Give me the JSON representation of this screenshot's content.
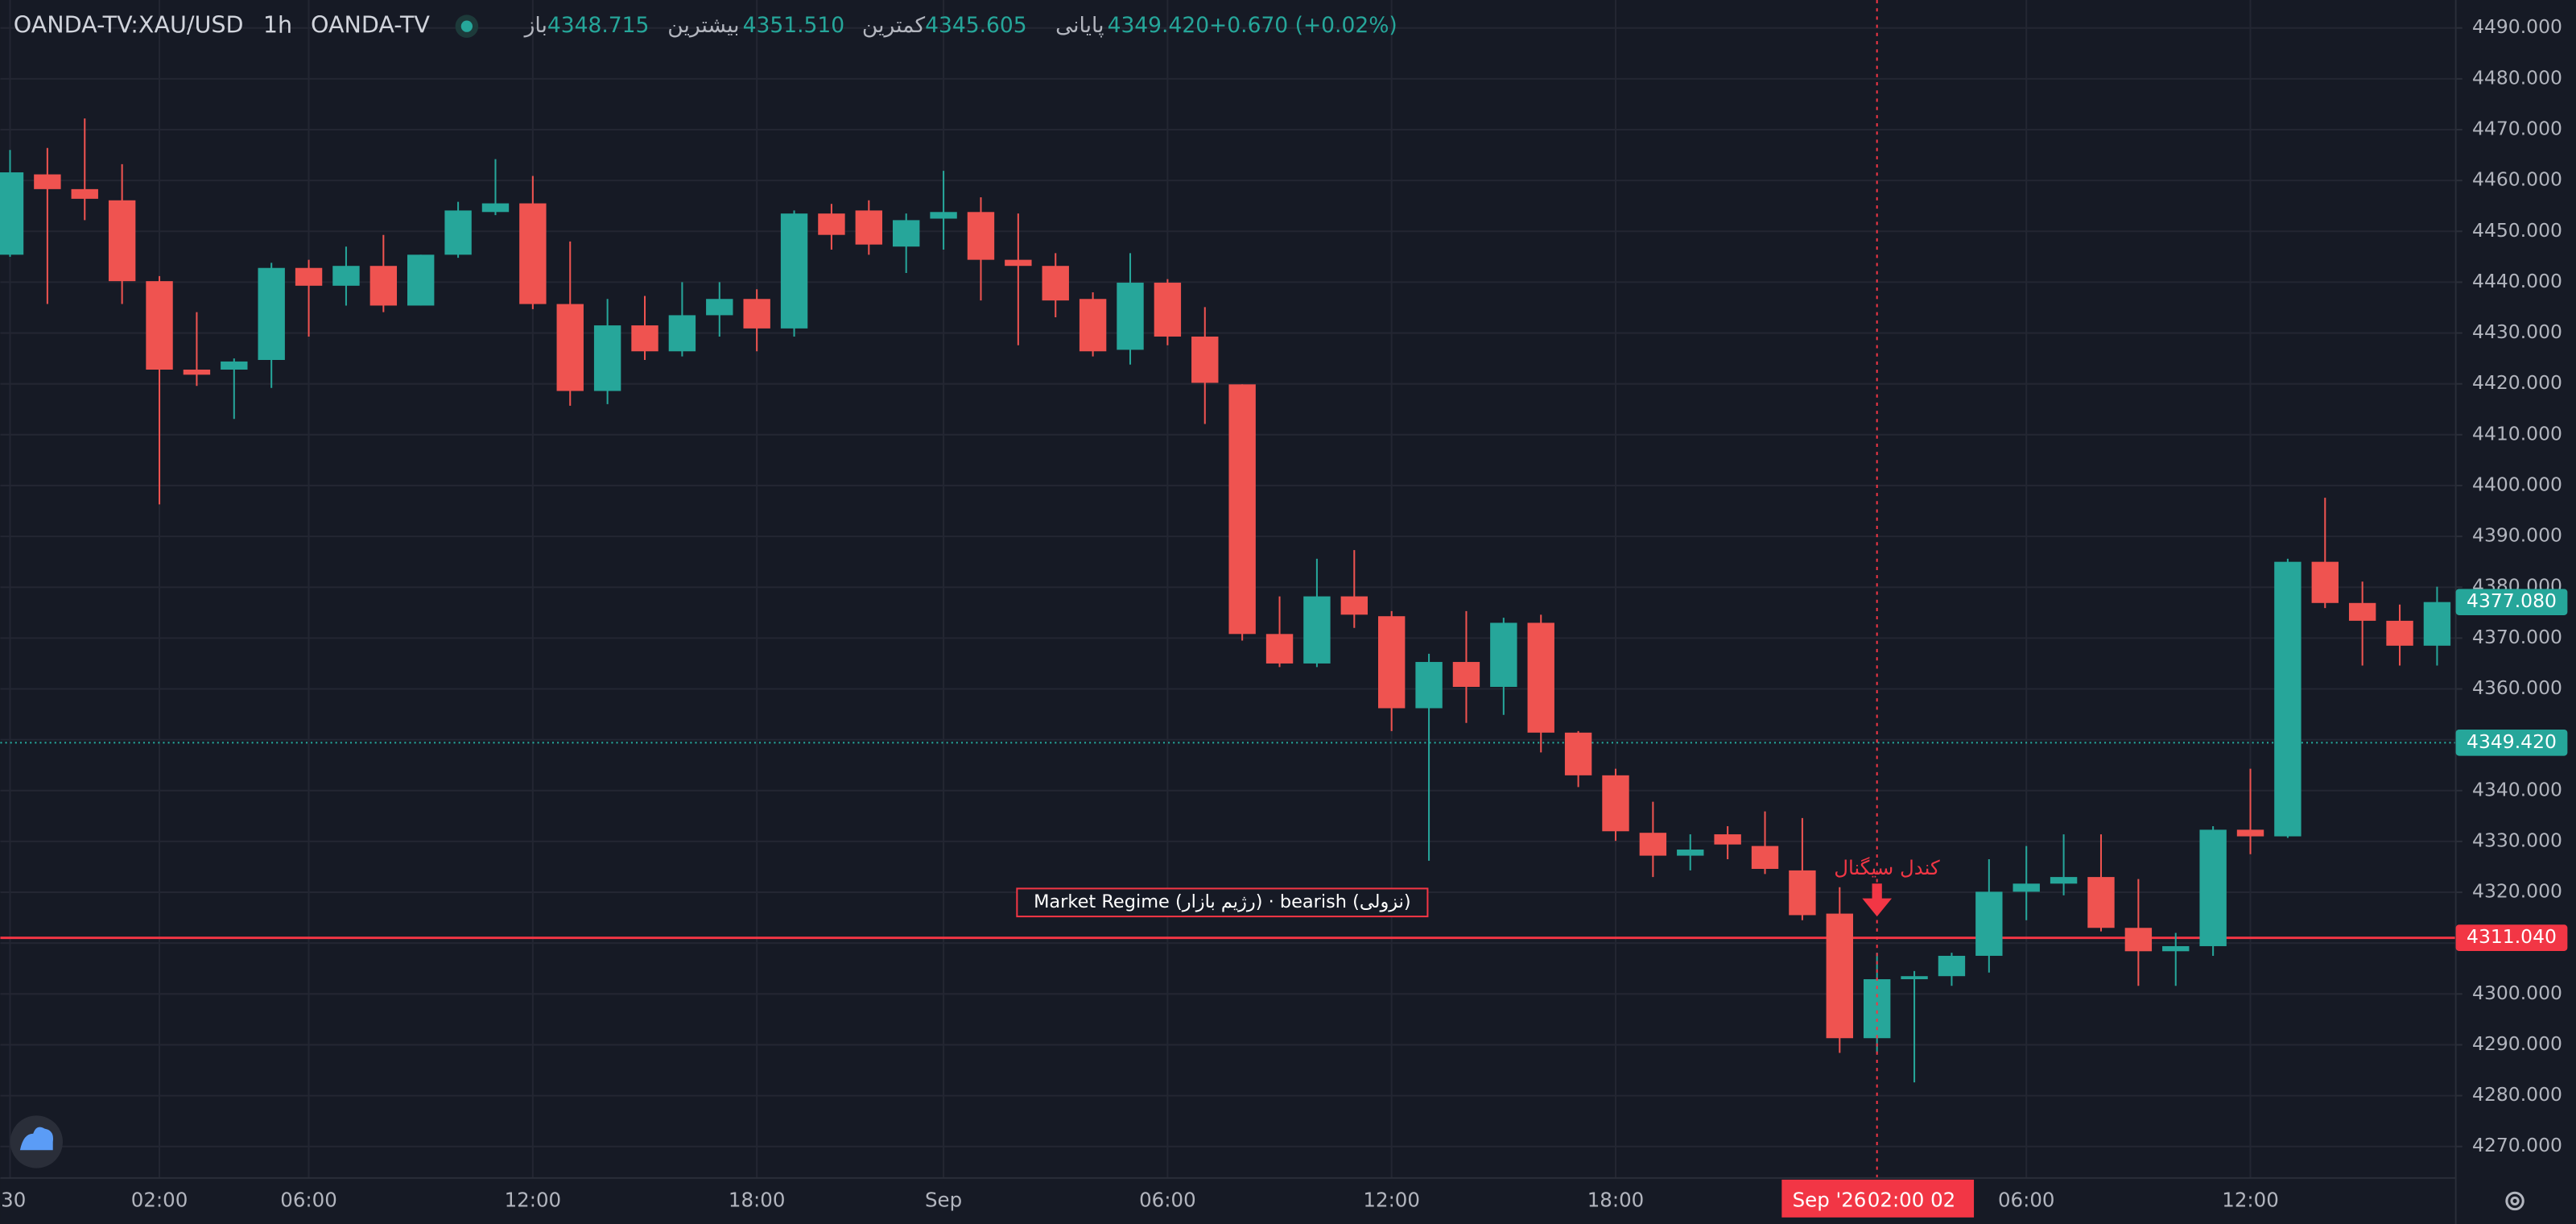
{
  "header": {
    "symbol": "OANDA-TV:XAU/USD",
    "interval": "1h",
    "source": "OANDA-TV",
    "fields": [
      {
        "label": "باز",
        "value": "4348.715"
      },
      {
        "label": "بیشترین",
        "value": "4351.510"
      },
      {
        "label": "کمترین",
        "value": "4345.605"
      },
      {
        "label": "پایانی",
        "value": "4349.420"
      }
    ],
    "change": "+0.670 (+0.02%)"
  },
  "chart_data": {
    "type": "candlestick",
    "up_color": "#26a69a",
    "down_color": "#ef5350",
    "grid": true,
    "open": [
      4445.4,
      4461.2,
      4458.3,
      4456.1,
      4440.2,
      4422.8,
      4422.8,
      4424.7,
      4442.8,
      4439.3,
      4443.2,
      4435.4,
      4445.4,
      4453.8,
      4455.5,
      4435.7,
      4418.6,
      4431.5,
      4426.4,
      4433.5,
      4436.7,
      4430.9,
      4453.5,
      4454.1,
      4447.0,
      4452.5,
      4453.8,
      4444.4,
      4443.2,
      4436.7,
      4426.7,
      4439.9,
      4429.3,
      4419.9,
      4370.8,
      4365.0,
      4378.2,
      4374.3,
      4356.2,
      4365.3,
      4360.4,
      4373.0,
      4351.4,
      4343.0,
      4331.7,
      4327.2,
      4331.4,
      4329.1,
      4324.3,
      4315.8,
      4291.3,
      4302.9,
      4303.5,
      4307.5,
      4320.1,
      4321.7,
      4323.0,
      4313.0,
      4308.4,
      4309.4,
      4332.3,
      4331.0,
      4385.0,
      4376.9,
      4373.4,
      4368.5
    ],
    "high": [
      4466.0,
      4466.4,
      4472.2,
      4463.2,
      4441.2,
      4434.1,
      4425.0,
      4443.8,
      4444.4,
      4447.0,
      4449.3,
      4445.4,
      4455.8,
      4464.2,
      4460.9,
      4448.0,
      4436.7,
      4437.3,
      4440.0,
      4440.0,
      4438.6,
      4454.1,
      4455.4,
      4456.1,
      4453.5,
      4461.9,
      4456.7,
      4453.5,
      4445.7,
      4438.0,
      4445.7,
      4440.6,
      4435.1,
      4419.9,
      4378.2,
      4385.6,
      4387.3,
      4375.3,
      4366.9,
      4375.3,
      4374.0,
      4374.6,
      4351.7,
      4344.3,
      4337.8,
      4331.4,
      4333.0,
      4335.9,
      4334.6,
      4321.0,
      4308.1,
      4304.5,
      4308.1,
      4326.5,
      4329.1,
      4331.4,
      4331.4,
      4322.6,
      4312.0,
      4333.0,
      4344.3,
      4385.6,
      4397.6,
      4381.1,
      4376.6,
      4380.1
    ],
    "low": [
      4445.0,
      4435.7,
      4452.2,
      4435.7,
      4396.3,
      4419.6,
      4413.1,
      4419.2,
      4429.3,
      4435.4,
      4434.1,
      4435.4,
      4444.8,
      4453.2,
      4434.7,
      4415.7,
      4416.0,
      4424.7,
      4425.4,
      4429.3,
      4426.4,
      4429.3,
      4446.4,
      4445.4,
      4441.8,
      4446.4,
      4436.4,
      4427.6,
      4433.1,
      4425.4,
      4423.8,
      4427.6,
      4412.1,
      4369.5,
      4364.3,
      4364.3,
      4372.0,
      4351.7,
      4326.2,
      4353.3,
      4354.9,
      4347.5,
      4340.7,
      4330.1,
      4323.0,
      4324.3,
      4326.5,
      4323.6,
      4314.5,
      4288.4,
      4288.4,
      4282.6,
      4301.6,
      4304.2,
      4314.5,
      4319.4,
      4312.3,
      4301.6,
      4301.6,
      4307.5,
      4327.5,
      4330.7,
      4375.9,
      4364.6,
      4364.6,
      4364.6
    ],
    "close": [
      4461.6,
      4458.3,
      4456.4,
      4440.2,
      4422.8,
      4421.8,
      4424.4,
      4442.8,
      4439.3,
      4443.2,
      4435.4,
      4445.4,
      4454.1,
      4455.5,
      4435.7,
      4418.6,
      4431.5,
      4426.4,
      4433.5,
      4436.7,
      4430.9,
      4453.5,
      4449.3,
      4447.4,
      4452.2,
      4453.8,
      4444.4,
      4443.2,
      4436.4,
      4426.4,
      4439.9,
      4429.3,
      4420.2,
      4370.8,
      4365.0,
      4378.2,
      4374.6,
      4356.2,
      4365.3,
      4360.4,
      4373.0,
      4351.4,
      4343.0,
      4332.0,
      4327.2,
      4328.4,
      4329.4,
      4324.6,
      4315.5,
      4291.3,
      4302.9,
      4303.5,
      4307.5,
      4320.1,
      4321.7,
      4323.0,
      4313.0,
      4308.4,
      4309.4,
      4332.3,
      4331.0,
      4385.0,
      4376.9,
      4373.4,
      4368.5,
      4377.08
    ],
    "xlim": [
      -0.26,
      65.5
    ],
    "xticks": [
      {
        "value": 0,
        "label": "30"
      },
      {
        "value": 4,
        "label": "02:00"
      },
      {
        "value": 8,
        "label": "06:00"
      },
      {
        "value": 14,
        "label": "12:00"
      },
      {
        "value": 20,
        "label": "18:00"
      },
      {
        "value": 25,
        "label": "Sep"
      },
      {
        "value": 31,
        "label": "06:00"
      },
      {
        "value": 37,
        "label": "12:00"
      },
      {
        "value": 43,
        "label": "18:00"
      },
      {
        "value": 54,
        "label": "06:00"
      },
      {
        "value": 60,
        "label": "12:00"
      }
    ],
    "ylim": [
      4263.8,
      4495.5
    ],
    "yticks": [
      {
        "value": 4270,
        "label": "4270.000"
      },
      {
        "value": 4280,
        "label": "4280.000"
      },
      {
        "value": 4290,
        "label": "4290.000"
      },
      {
        "value": 4300,
        "label": "4300.000"
      },
      {
        "value": 4310,
        "label": "4310.000"
      },
      {
        "value": 4320,
        "label": "4320.000"
      },
      {
        "value": 4330,
        "label": "4330.000"
      },
      {
        "value": 4340,
        "label": "4340.000"
      },
      {
        "value": 4350,
        "label": "4350.000"
      },
      {
        "value": 4360,
        "label": "4360.000"
      },
      {
        "value": 4370,
        "label": "4370.000"
      },
      {
        "value": 4380,
        "label": "4380.000"
      },
      {
        "value": 4390,
        "label": "4390.000"
      },
      {
        "value": 4400,
        "label": "4400.000"
      },
      {
        "value": 4410,
        "label": "4410.000"
      },
      {
        "value": 4420,
        "label": "4420.000"
      },
      {
        "value": 4430,
        "label": "4430.000"
      },
      {
        "value": 4440,
        "label": "4440.000"
      },
      {
        "value": 4450,
        "label": "4450.000"
      },
      {
        "value": 4460,
        "label": "4460.000"
      },
      {
        "value": 4470,
        "label": "4470.000"
      },
      {
        "value": 4480,
        "label": "4480.000"
      },
      {
        "value": 4490,
        "label": "4490.000"
      }
    ],
    "price_lines": [
      {
        "value": 4311.04,
        "label": "4311.040",
        "color": "#f23645",
        "style": "solid"
      },
      {
        "value": 4349.42,
        "label": "4349.420",
        "color": "#26a69a",
        "style": "dotted"
      },
      {
        "value": 4377.08,
        "label": "4377.080",
        "color": "#26a69a",
        "style": "none"
      }
    ],
    "crosshair": {
      "x": 50,
      "date": "Sep '26",
      "time": "02:00 02",
      "color": "#f23645"
    },
    "signal": {
      "x": 50,
      "label": "کندل سیگنال",
      "color": "#f23645"
    },
    "regime_label": "Market Regime (رژیم بازار) · bearish (نزولی)"
  }
}
